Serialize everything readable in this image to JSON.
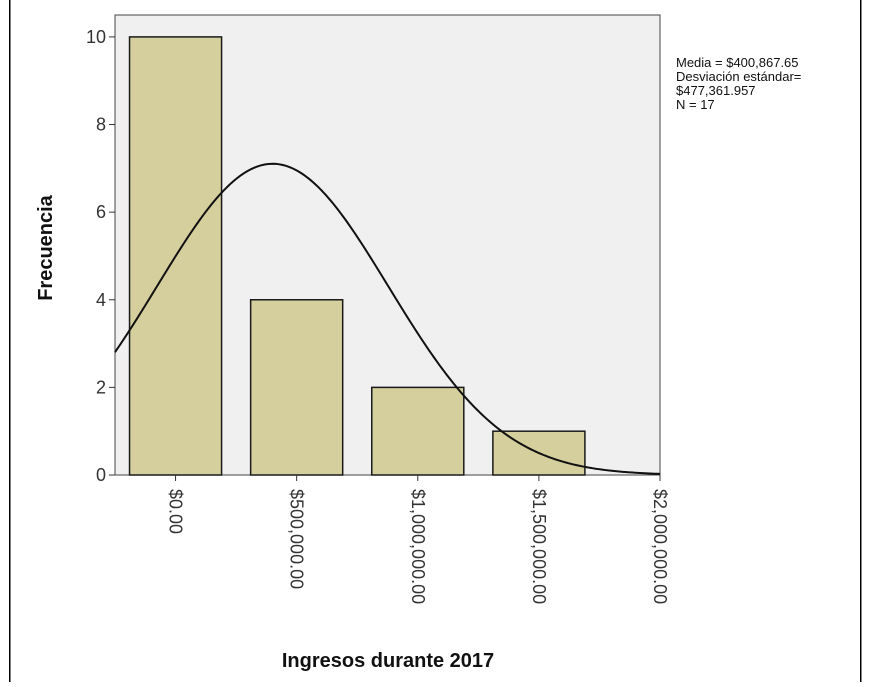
{
  "chart_data": {
    "type": "bar",
    "subtype": "histogram",
    "xlabel": "Ingresos durante 2017",
    "ylabel": "Frecuencia",
    "ylim": [
      0,
      10.5
    ],
    "xlim": [
      -250000,
      2000000
    ],
    "bin_width": 500000,
    "bins": [
      {
        "start": -250000,
        "end": 250000,
        "value": 10
      },
      {
        "start": 250000,
        "end": 750000,
        "value": 4
      },
      {
        "start": 750000,
        "end": 1250000,
        "value": 2
      },
      {
        "start": 1250000,
        "end": 1750000,
        "value": 1
      }
    ],
    "y_ticks": [
      {
        "value": 0,
        "label": "0"
      },
      {
        "value": 2,
        "label": "2"
      },
      {
        "value": 4,
        "label": "4"
      },
      {
        "value": 6,
        "label": "6"
      },
      {
        "value": 8,
        "label": "8"
      },
      {
        "value": 10,
        "label": "10"
      }
    ],
    "x_ticks": [
      {
        "value": 0,
        "label": "$0.00"
      },
      {
        "value": 500000,
        "label": "$500,000.00"
      },
      {
        "value": 1000000,
        "label": "$1,000,000.00"
      },
      {
        "value": 1500000,
        "label": "$1,500,000.00"
      },
      {
        "value": 2000000,
        "label": "$2,000,000.00"
      }
    ],
    "normal_curve": {
      "mean": 400867.65,
      "sd": 477361.957,
      "n": 17
    },
    "stats_text": [
      "Media = $400,867.65",
      "Desviación estándar=",
      "$477,361.957",
      "N = 17"
    ],
    "grid": false,
    "legend": "none",
    "colors": {
      "bar_fill": "#d4cf9d",
      "bar_stroke": "#1a1a1a",
      "plot_bg": "#f0f0f0",
      "curve": "#111111"
    }
  }
}
